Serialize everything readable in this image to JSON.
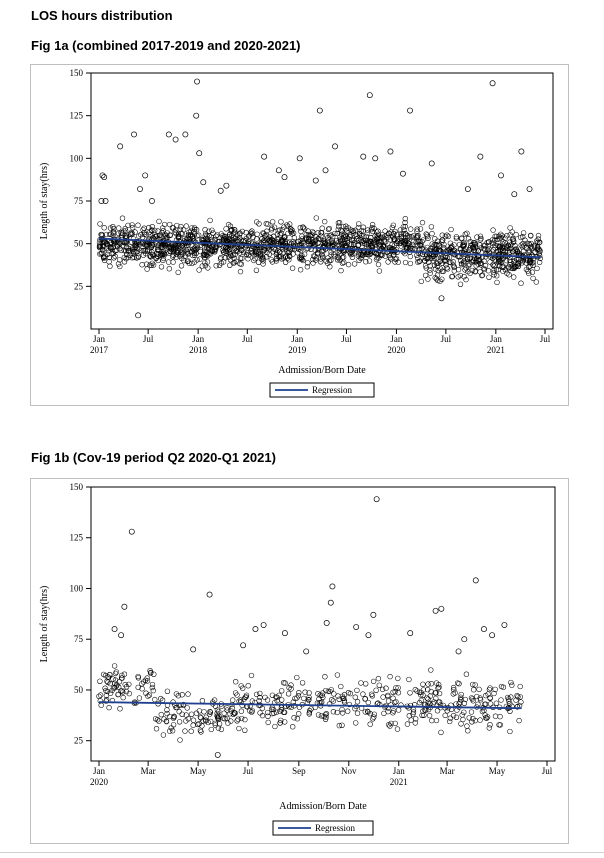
{
  "page": {
    "title": "LOS hours distribution",
    "fig1_heading": "Fig 1a (combined 2017-2019 and 2020-2021)",
    "fig2_heading": "Fig 1b (Cov-19 period Q2 2020-Q1 2021)"
  },
  "chart_data": [
    {
      "type": "scatter",
      "title": "",
      "xlabel": "Admission/Born Date",
      "ylabel": "Length of stay(hrs)",
      "ylim": [
        0,
        150
      ],
      "yticks": [
        25,
        50,
        75,
        100,
        125,
        150
      ],
      "xlim": [
        "2017-01-01",
        "2021-07-01"
      ],
      "xticks": [
        {
          "date": "2017-01-01",
          "label": "Jan",
          "year": "2017"
        },
        {
          "date": "2017-07-01",
          "label": "Jul",
          "year": ""
        },
        {
          "date": "2018-01-01",
          "label": "Jan",
          "year": "2018"
        },
        {
          "date": "2018-07-01",
          "label": "Jul",
          "year": ""
        },
        {
          "date": "2019-01-01",
          "label": "Jan",
          "year": "2019"
        },
        {
          "date": "2019-07-01",
          "label": "Jul",
          "year": ""
        },
        {
          "date": "2020-01-01",
          "label": "Jan",
          "year": "2020"
        },
        {
          "date": "2020-07-01",
          "label": "Jul",
          "year": ""
        },
        {
          "date": "2021-01-01",
          "label": "Jan",
          "year": "2021"
        },
        {
          "date": "2021-07-01",
          "label": "Jul",
          "year": ""
        }
      ],
      "series": [
        {
          "kind": "points",
          "color": "#000000",
          "points": [
            {
              "x": "2017-01-10",
              "y": 75
            },
            {
              "x": "2017-01-14",
              "y": 90
            },
            {
              "x": "2017-01-20",
              "y": 89
            },
            {
              "x": "2017-01-25",
              "y": 75
            },
            {
              "x": "2017-03-20",
              "y": 107
            },
            {
              "x": "2017-05-10",
              "y": 114
            },
            {
              "x": "2017-06-20",
              "y": 90
            },
            {
              "x": "2017-06-01",
              "y": 82
            },
            {
              "x": "2017-05-25",
              "y": 8
            },
            {
              "x": "2017-07-15",
              "y": 75
            },
            {
              "x": "2017-09-15",
              "y": 114
            },
            {
              "x": "2017-10-10",
              "y": 111
            },
            {
              "x": "2017-11-15",
              "y": 114
            },
            {
              "x": "2017-12-28",
              "y": 145
            },
            {
              "x": "2017-12-25",
              "y": 125
            },
            {
              "x": "2018-01-05",
              "y": 103
            },
            {
              "x": "2018-01-20",
              "y": 86
            },
            {
              "x": "2018-03-25",
              "y": 81
            },
            {
              "x": "2018-04-15",
              "y": 84
            },
            {
              "x": "2018-09-01",
              "y": 101
            },
            {
              "x": "2018-10-25",
              "y": 93
            },
            {
              "x": "2018-11-15",
              "y": 89
            },
            {
              "x": "2019-01-10",
              "y": 100
            },
            {
              "x": "2019-03-25",
              "y": 128
            },
            {
              "x": "2019-04-15",
              "y": 93
            },
            {
              "x": "2019-05-20",
              "y": 107
            },
            {
              "x": "2019-03-10",
              "y": 87
            },
            {
              "x": "2019-09-25",
              "y": 137
            },
            {
              "x": "2019-09-01",
              "y": 101
            },
            {
              "x": "2019-10-15",
              "y": 100
            },
            {
              "x": "2019-12-10",
              "y": 104
            },
            {
              "x": "2020-02-20",
              "y": 128
            },
            {
              "x": "2020-01-25",
              "y": 91
            },
            {
              "x": "2020-05-10",
              "y": 97
            },
            {
              "x": "2020-06-15",
              "y": 18
            },
            {
              "x": "2020-09-20",
              "y": 82
            },
            {
              "x": "2020-11-05",
              "y": 101
            },
            {
              "x": "2020-12-20",
              "y": 144
            },
            {
              "x": "2021-01-20",
              "y": 90
            },
            {
              "x": "2021-04-05",
              "y": 104
            },
            {
              "x": "2021-05-05",
              "y": 82
            },
            {
              "x": "2021-03-10",
              "y": 79
            }
          ]
        },
        {
          "kind": "bulk",
          "segments": [
            {
              "x": [
                "2017-01-01",
                "2020-03-31"
              ],
              "y": [
                32,
                67
              ]
            },
            {
              "x": [
                "2020-04-01",
                "2021-06-15"
              ],
              "y": [
                24,
                64
              ]
            }
          ]
        },
        {
          "name": "Regression",
          "kind": "line",
          "color": "#1f3f8f",
          "points": [
            {
              "x": "2017-01-01",
              "y": 53
            },
            {
              "x": "2021-06-15",
              "y": 42
            }
          ]
        }
      ],
      "legend": {
        "position": "bottom-center"
      }
    },
    {
      "type": "scatter",
      "title": "",
      "xlabel": "Admission/Born Date",
      "ylabel": "Length of stay(hrs)",
      "ylim": [
        15,
        150
      ],
      "yticks": [
        25,
        50,
        75,
        100,
        125,
        150
      ],
      "xlim": [
        "2020-01-01",
        "2021-07-01"
      ],
      "xticks": [
        {
          "date": "2020-01-01",
          "label": "Jan",
          "year": "2020"
        },
        {
          "date": "2020-03-01",
          "label": "Mar",
          "year": ""
        },
        {
          "date": "2020-05-01",
          "label": "May",
          "year": ""
        },
        {
          "date": "2020-07-01",
          "label": "Jul",
          "year": ""
        },
        {
          "date": "2020-09-01",
          "label": "Sep",
          "year": ""
        },
        {
          "date": "2020-11-01",
          "label": "Nov",
          "year": ""
        },
        {
          "date": "2021-01-01",
          "label": "Jan",
          "year": "2021"
        },
        {
          "date": "2021-03-01",
          "label": "Mar",
          "year": ""
        },
        {
          "date": "2021-05-01",
          "label": "May",
          "year": ""
        },
        {
          "date": "2021-07-01",
          "label": "Jul",
          "year": ""
        }
      ],
      "series": [
        {
          "kind": "points",
          "color": "#000000",
          "points": [
            {
              "x": "2020-02-10",
              "y": 128
            },
            {
              "x": "2020-01-20",
              "y": 80
            },
            {
              "x": "2020-02-01",
              "y": 91
            },
            {
              "x": "2020-01-28",
              "y": 77
            },
            {
              "x": "2020-05-15",
              "y": 97
            },
            {
              "x": "2020-06-25",
              "y": 72
            },
            {
              "x": "2020-07-10",
              "y": 80
            },
            {
              "x": "2020-07-20",
              "y": 82
            },
            {
              "x": "2020-05-25",
              "y": 18
            },
            {
              "x": "2020-08-15",
              "y": 78
            },
            {
              "x": "2020-09-10",
              "y": 69
            },
            {
              "x": "2020-10-05",
              "y": 83
            },
            {
              "x": "2020-10-10",
              "y": 93
            },
            {
              "x": "2020-10-12",
              "y": 101
            },
            {
              "x": "2020-11-10",
              "y": 81
            },
            {
              "x": "2020-12-05",
              "y": 144
            },
            {
              "x": "2020-12-01",
              "y": 87
            },
            {
              "x": "2020-11-25",
              "y": 77
            },
            {
              "x": "2021-01-15",
              "y": 78
            },
            {
              "x": "2021-02-15",
              "y": 89
            },
            {
              "x": "2021-02-22",
              "y": 90
            },
            {
              "x": "2021-03-15",
              "y": 69
            },
            {
              "x": "2021-04-05",
              "y": 104
            },
            {
              "x": "2021-03-22",
              "y": 75
            },
            {
              "x": "2021-04-15",
              "y": 80
            },
            {
              "x": "2021-04-25",
              "y": 77
            },
            {
              "x": "2021-05-10",
              "y": 82
            },
            {
              "x": "2020-04-25",
              "y": 70
            }
          ]
        },
        {
          "kind": "bulk",
          "segments": [
            {
              "x": [
                "2020-01-01",
                "2020-03-10"
              ],
              "y": [
                38,
                64
              ]
            },
            {
              "x": [
                "2020-03-10",
                "2020-06-15"
              ],
              "y": [
                24,
                52
              ]
            },
            {
              "x": [
                "2020-06-15",
                "2021-05-31"
              ],
              "y": [
                25,
                62
              ]
            }
          ]
        },
        {
          "name": "Regression",
          "kind": "line",
          "color": "#1f3f8f",
          "points": [
            {
              "x": "2020-01-01",
              "y": 44
            },
            {
              "x": "2021-05-31",
              "y": 41
            }
          ]
        }
      ],
      "legend": {
        "position": "bottom-center"
      }
    }
  ]
}
